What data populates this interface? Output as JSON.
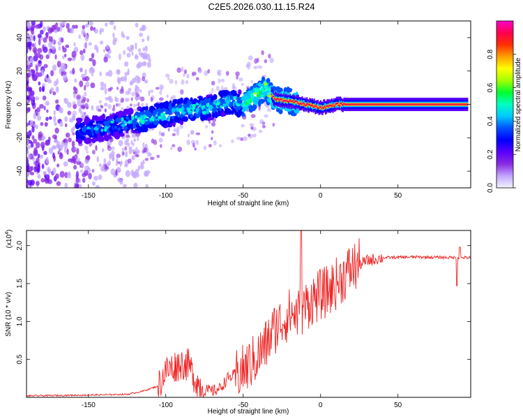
{
  "title": "C2E5.2026.030.11.15.R24",
  "chart_data": [
    {
      "type": "heatmap",
      "name": "spectrogram",
      "xlabel": "Height of straight line (km)",
      "ylabel": "Frequency (Hz)",
      "xlim": [
        -190,
        97
      ],
      "ylim": [
        -50,
        50
      ],
      "xticks": [
        -150,
        -100,
        -50,
        0,
        50
      ],
      "yticks": [
        -40,
        -20,
        0,
        20,
        40
      ],
      "colorbar": {
        "label": "Normalized spectral amplitude",
        "range": [
          0.0,
          1.0
        ],
        "ticks": [
          0.0,
          0.2,
          0.4,
          0.6,
          0.8
        ],
        "colors": [
          "#f4f4ff",
          "#c2a5ff",
          "#8a2be2",
          "#5a00ff",
          "#0000ff",
          "#0050ff",
          "#00c8ff",
          "#00ffc0",
          "#00ff30",
          "#a0ff00",
          "#ffff00",
          "#ffa000",
          "#ff3000",
          "#ff0050",
          "#ff00c8"
        ]
      },
      "ridge": [
        [
          -155,
          -16
        ],
        [
          -140,
          -14
        ],
        [
          -120,
          -10
        ],
        [
          -100,
          -6
        ],
        [
          -85,
          -3
        ],
        [
          -70,
          -2
        ],
        [
          -60,
          2
        ],
        [
          -50,
          0
        ],
        [
          -40,
          6
        ],
        [
          -35,
          10
        ],
        [
          -30,
          3
        ],
        [
          -20,
          2
        ],
        [
          -10,
          0
        ],
        [
          0,
          -2
        ],
        [
          10,
          0
        ],
        [
          20,
          0
        ],
        [
          50,
          0
        ],
        [
          90,
          0
        ],
        [
          97,
          0
        ]
      ]
    },
    {
      "type": "line",
      "name": "snr",
      "xlabel": "Height of straight line (km)",
      "ylabel": "SNR (10 * v/v)",
      "yscale_label": "(x10",
      "yscale_exp": "4",
      "xlim": [
        -190,
        97
      ],
      "ylim": [
        0,
        2.2
      ],
      "xticks": [
        -150,
        -100,
        -50,
        0,
        50
      ],
      "yticks": [
        0.5,
        1.0,
        1.5,
        2.0
      ],
      "color": "#ee2222",
      "envelope": [
        [
          -190,
          0.02
        ],
        [
          -150,
          0.03
        ],
        [
          -125,
          0.04
        ],
        [
          -115,
          0.08
        ],
        [
          -105,
          0.15
        ],
        [
          -100,
          0.35
        ],
        [
          -95,
          0.4
        ],
        [
          -90,
          0.45
        ],
        [
          -85,
          0.42
        ],
        [
          -80,
          0.2
        ],
        [
          -75,
          0.1
        ],
        [
          -70,
          0.08
        ],
        [
          -65,
          0.12
        ],
        [
          -60,
          0.25
        ],
        [
          -55,
          0.3
        ],
        [
          -50,
          0.35
        ],
        [
          -45,
          0.45
        ],
        [
          -40,
          0.55
        ],
        [
          -35,
          0.7
        ],
        [
          -30,
          0.9
        ],
        [
          -25,
          1.0
        ],
        [
          -20,
          1.1
        ],
        [
          -15,
          1.1
        ],
        [
          -10,
          1.2
        ],
        [
          -5,
          1.3
        ],
        [
          0,
          1.35
        ],
        [
          5,
          1.4
        ],
        [
          10,
          1.5
        ],
        [
          15,
          1.6
        ],
        [
          20,
          1.7
        ],
        [
          25,
          1.75
        ],
        [
          30,
          1.8
        ],
        [
          40,
          1.84
        ],
        [
          60,
          1.85
        ],
        [
          97,
          1.84
        ]
      ]
    }
  ]
}
